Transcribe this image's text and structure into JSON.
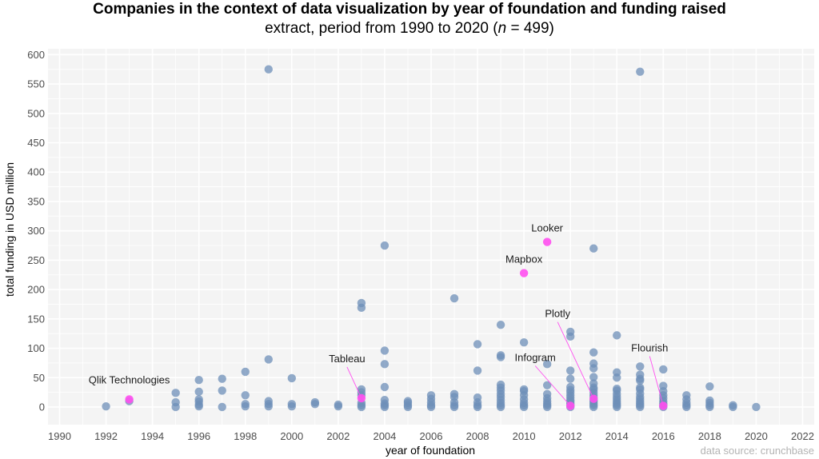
{
  "title": "Companies in the context of data visualization by year of foundation and funding raised",
  "subtitle_prefix": "extract, period from 1990 to 2020 (",
  "subtitle_n_symbol": "n",
  "subtitle_suffix": " = 499)",
  "source": "data source: crunchbase",
  "colors": {
    "points": "#6d8fb8",
    "highlight": "#ff4ff0",
    "panel": "#f4f4f4",
    "grid": "#ffffff"
  },
  "chart_data": {
    "type": "scatter",
    "xlabel": "year of foundation",
    "ylabel": "total funding in USD million",
    "xlim": [
      1989.5,
      2022.5
    ],
    "ylim": [
      -30,
      610
    ],
    "xticks": [
      1990,
      1992,
      1994,
      1996,
      1998,
      2000,
      2002,
      2004,
      2006,
      2008,
      2010,
      2012,
      2014,
      2016,
      2018,
      2020,
      2022
    ],
    "yticks": [
      0,
      50,
      100,
      150,
      200,
      250,
      300,
      350,
      400,
      450,
      500,
      550,
      600
    ],
    "grid": true,
    "points": [
      [
        1992,
        1
      ],
      [
        1993,
        10
      ],
      [
        1995,
        0
      ],
      [
        1995,
        8
      ],
      [
        1995,
        24
      ],
      [
        1996,
        1
      ],
      [
        1996,
        4
      ],
      [
        1996,
        9
      ],
      [
        1996,
        13
      ],
      [
        1996,
        26
      ],
      [
        1996,
        46
      ],
      [
        1997,
        0
      ],
      [
        1997,
        28
      ],
      [
        1997,
        48
      ],
      [
        1998,
        1
      ],
      [
        1998,
        5
      ],
      [
        1998,
        20
      ],
      [
        1998,
        60
      ],
      [
        1999,
        1
      ],
      [
        1999,
        5
      ],
      [
        1999,
        10
      ],
      [
        1999,
        81
      ],
      [
        1999,
        575
      ],
      [
        2000,
        1
      ],
      [
        2000,
        5
      ],
      [
        2000,
        49
      ],
      [
        2001,
        5
      ],
      [
        2001,
        8
      ],
      [
        2002,
        1
      ],
      [
        2002,
        4
      ],
      [
        2003,
        0
      ],
      [
        2003,
        3
      ],
      [
        2003,
        7
      ],
      [
        2003,
        20
      ],
      [
        2003,
        25
      ],
      [
        2003,
        30
      ],
      [
        2003,
        169
      ],
      [
        2003,
        177
      ],
      [
        2004,
        0
      ],
      [
        2004,
        3
      ],
      [
        2004,
        6
      ],
      [
        2004,
        12
      ],
      [
        2004,
        34
      ],
      [
        2004,
        73
      ],
      [
        2004,
        96
      ],
      [
        2004,
        275
      ],
      [
        2005,
        0
      ],
      [
        2005,
        3
      ],
      [
        2005,
        7
      ],
      [
        2005,
        10
      ],
      [
        2006,
        0
      ],
      [
        2006,
        3
      ],
      [
        2006,
        8
      ],
      [
        2006,
        14
      ],
      [
        2006,
        20
      ],
      [
        2007,
        0
      ],
      [
        2007,
        3
      ],
      [
        2007,
        8
      ],
      [
        2007,
        17
      ],
      [
        2007,
        22
      ],
      [
        2007,
        185
      ],
      [
        2008,
        0
      ],
      [
        2008,
        3
      ],
      [
        2008,
        8
      ],
      [
        2008,
        16
      ],
      [
        2008,
        62
      ],
      [
        2008,
        107
      ],
      [
        2009,
        0
      ],
      [
        2009,
        3
      ],
      [
        2009,
        7
      ],
      [
        2009,
        12
      ],
      [
        2009,
        17
      ],
      [
        2009,
        22
      ],
      [
        2009,
        28
      ],
      [
        2009,
        33
      ],
      [
        2009,
        38
      ],
      [
        2009,
        85
      ],
      [
        2009,
        88
      ],
      [
        2009,
        140
      ],
      [
        2010,
        0
      ],
      [
        2010,
        3
      ],
      [
        2010,
        7
      ],
      [
        2010,
        13
      ],
      [
        2010,
        20
      ],
      [
        2010,
        27
      ],
      [
        2010,
        30
      ],
      [
        2010,
        110
      ],
      [
        2011,
        0
      ],
      [
        2011,
        3
      ],
      [
        2011,
        6
      ],
      [
        2011,
        10
      ],
      [
        2011,
        15
      ],
      [
        2011,
        22
      ],
      [
        2011,
        37
      ],
      [
        2011,
        73
      ],
      [
        2012,
        0
      ],
      [
        2012,
        3
      ],
      [
        2012,
        6
      ],
      [
        2012,
        9
      ],
      [
        2012,
        12
      ],
      [
        2012,
        16
      ],
      [
        2012,
        20
      ],
      [
        2012,
        25
      ],
      [
        2012,
        29
      ],
      [
        2012,
        34
      ],
      [
        2012,
        48
      ],
      [
        2012,
        62
      ],
      [
        2012,
        120
      ],
      [
        2012,
        128
      ],
      [
        2013,
        0
      ],
      [
        2013,
        3
      ],
      [
        2013,
        6
      ],
      [
        2013,
        9
      ],
      [
        2013,
        12
      ],
      [
        2013,
        16
      ],
      [
        2013,
        20
      ],
      [
        2013,
        25
      ],
      [
        2013,
        30
      ],
      [
        2013,
        33
      ],
      [
        2013,
        40
      ],
      [
        2013,
        51
      ],
      [
        2013,
        66
      ],
      [
        2013,
        74
      ],
      [
        2013,
        93
      ],
      [
        2013,
        270
      ],
      [
        2014,
        0
      ],
      [
        2014,
        3
      ],
      [
        2014,
        6
      ],
      [
        2014,
        9
      ],
      [
        2014,
        13
      ],
      [
        2014,
        17
      ],
      [
        2014,
        22
      ],
      [
        2014,
        28
      ],
      [
        2014,
        31
      ],
      [
        2014,
        50
      ],
      [
        2014,
        59
      ],
      [
        2014,
        122
      ],
      [
        2015,
        0
      ],
      [
        2015,
        3
      ],
      [
        2015,
        6
      ],
      [
        2015,
        9
      ],
      [
        2015,
        13
      ],
      [
        2015,
        17
      ],
      [
        2015,
        23
      ],
      [
        2015,
        30
      ],
      [
        2015,
        33
      ],
      [
        2015,
        45
      ],
      [
        2015,
        48
      ],
      [
        2015,
        55
      ],
      [
        2015,
        69
      ],
      [
        2015,
        571
      ],
      [
        2016,
        0
      ],
      [
        2016,
        3
      ],
      [
        2016,
        6
      ],
      [
        2016,
        10
      ],
      [
        2016,
        15
      ],
      [
        2016,
        20
      ],
      [
        2016,
        27
      ],
      [
        2016,
        36
      ],
      [
        2016,
        64
      ],
      [
        2017,
        0
      ],
      [
        2017,
        3
      ],
      [
        2017,
        7
      ],
      [
        2017,
        13
      ],
      [
        2017,
        20
      ],
      [
        2018,
        0
      ],
      [
        2018,
        3
      ],
      [
        2018,
        7
      ],
      [
        2018,
        11
      ],
      [
        2018,
        35
      ],
      [
        2019,
        0
      ],
      [
        2019,
        3
      ],
      [
        2020,
        0
      ]
    ],
    "highlighted": [
      {
        "label": "Qlik Technologies",
        "x": 1993,
        "y": 13
      },
      {
        "label": "Tableau",
        "x": 2003,
        "y": 15
      },
      {
        "label": "Looker",
        "x": 2011,
        "y": 281
      },
      {
        "label": "Mapbox",
        "x": 2010,
        "y": 228
      },
      {
        "label": "Plotly",
        "x": 2013,
        "y": 14
      },
      {
        "label": "Infogram",
        "x": 2012,
        "y": 2
      },
      {
        "label": "Flourish",
        "x": 2016,
        "y": 2
      }
    ]
  }
}
